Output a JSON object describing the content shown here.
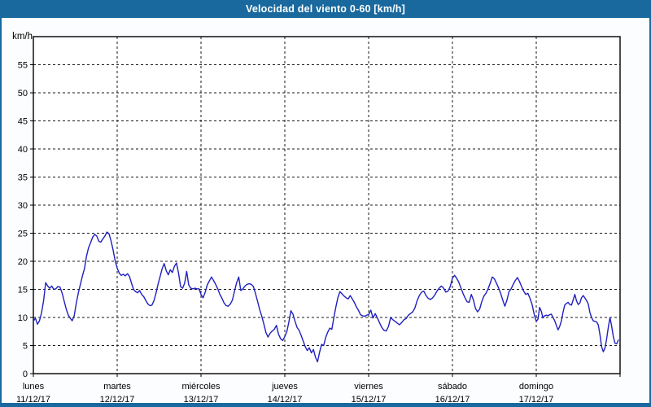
{
  "title": "Velocidad del viento 0-60 [km/h]",
  "colors": {
    "titlebar": "#19699e",
    "frame": "#19699e",
    "canvas_bg": "#fbfdfe",
    "plot_bg": "#ffffff",
    "grid": "#1a1a1a",
    "line": "#2020c0"
  },
  "y_axis": {
    "unit": "km/h",
    "min_label": "0",
    "max_label": "55"
  },
  "chart_data": {
    "type": "line",
    "title": "Velocidad del viento 0-60 [km/h]",
    "xlabel": "",
    "ylabel": "km/h",
    "ylim": [
      0,
      60
    ],
    "y_tick_step": 5,
    "grid": "dashed",
    "legend": "none",
    "line_color": "#2020c0",
    "series_name": "wind-speed",
    "days": [
      {
        "name": "lunes",
        "date": "11/12/17",
        "values": [
          9.3,
          9.9,
          8.8,
          9.4,
          10.8,
          13.0,
          16.2,
          15.6,
          15.2,
          15.6,
          15.0,
          15.1,
          15.5,
          15.4,
          14.4,
          13.0,
          11.6,
          10.5,
          9.9,
          9.4,
          10.3,
          12.6,
          14.4,
          15.9,
          17.4,
          18.7,
          20.9,
          22.4,
          23.3,
          24.3,
          24.8,
          24.5,
          23.6,
          23.4,
          24.0,
          24.5,
          25.2,
          24.9,
          23.6,
          22.0,
          20.1
        ]
      },
      {
        "name": "martes",
        "date": "12/12/17",
        "values": [
          18.8,
          17.9,
          17.5,
          17.7,
          17.4,
          17.8,
          17.3,
          16.1,
          15.0,
          14.6,
          14.4,
          14.8,
          14.1,
          13.7,
          13.0,
          12.4,
          12.1,
          12.2,
          13.0,
          14.3,
          15.9,
          17.3,
          18.7,
          19.6,
          18.3,
          17.6,
          18.5,
          18.0,
          19.1,
          19.7,
          17.9,
          15.5,
          15.2,
          16.1,
          18.2,
          15.8,
          15.2,
          15.1,
          15.2,
          15.1,
          15.1
        ]
      },
      {
        "name": "miércoles",
        "date": "13/12/17",
        "values": [
          14.1,
          13.5,
          14.5,
          15.8,
          16.5,
          17.2,
          16.6,
          15.9,
          15.1,
          14.1,
          13.4,
          12.6,
          12.1,
          12.0,
          12.4,
          13.1,
          14.7,
          16.2,
          17.2,
          14.8,
          15.1,
          15.6,
          15.9,
          16.0,
          15.9,
          15.5,
          14.3,
          12.9,
          11.4,
          10.2,
          8.8,
          7.3,
          6.5,
          7.2,
          7.6,
          7.9,
          8.6,
          7.0,
          6.2,
          5.9
        ]
      },
      {
        "name": "jueves",
        "date": "14/12/17",
        "values": [
          6.6,
          7.5,
          9.2,
          11.2,
          10.6,
          9.3,
          8.2,
          7.7,
          6.8,
          5.8,
          4.8,
          4.1,
          4.6,
          3.7,
          4.3,
          2.9,
          2.1,
          3.8,
          5.2,
          5.0,
          6.4,
          7.4,
          8.1,
          7.9,
          10.0,
          11.9,
          13.6,
          14.6,
          14.2,
          13.8,
          13.5,
          13.3,
          13.9,
          13.3,
          12.7,
          11.9,
          11.3,
          10.5,
          10.3,
          10.2,
          10.4
        ]
      },
      {
        "name": "viernes",
        "date": "15/12/17",
        "values": [
          10.5,
          11.3,
          9.9,
          10.7,
          9.9,
          9.0,
          8.2,
          7.7,
          7.6,
          8.4,
          10.0,
          9.6,
          9.3,
          9.0,
          8.7,
          9.1,
          9.6,
          9.8,
          10.4,
          10.7,
          11.0,
          11.7,
          13.0,
          13.9,
          14.5,
          14.7,
          13.9,
          13.4,
          13.2,
          13.5,
          14.0,
          14.7,
          15.2,
          15.6,
          15.2,
          14.5,
          14.7,
          15.5
        ]
      },
      {
        "name": "sábado",
        "date": "16/12/17",
        "values": [
          17.0,
          17.5,
          17.0,
          16.3,
          15.3,
          14.3,
          13.5,
          12.8,
          12.7,
          14.1,
          13.1,
          11.6,
          11.0,
          11.5,
          12.8,
          13.8,
          14.3,
          15.1,
          16.1,
          17.2,
          16.9,
          16.1,
          15.3,
          14.3,
          13.1,
          12.0,
          13.1,
          14.6,
          15.1,
          15.9,
          16.6,
          17.1,
          16.4,
          15.5,
          14.7,
          14.1,
          14.3,
          13.4,
          12.3,
          10.6
        ]
      },
      {
        "name": "domingo",
        "date": "17/12/17",
        "values": [
          9.3,
          9.7,
          11.8,
          11.1,
          9.9,
          10.3,
          10.4,
          10.3,
          10.5,
          10.6,
          10.0,
          9.4,
          8.6,
          7.8,
          8.4,
          9.4,
          11.0,
          12.2,
          12.5,
          12.7,
          12.3,
          12.2,
          13.1,
          14.1,
          13.0,
          12.3,
          12.6,
          13.5,
          13.9,
          13.5,
          13.0,
          12.4,
          10.9,
          10.0,
          9.4,
          9.3,
          9.2,
          8.7,
          6.9,
          4.8,
          3.9,
          4.6,
          6.2,
          8.3,
          10.0,
          8.4,
          6.5,
          5.4,
          5.3,
          6.0
        ]
      }
    ]
  }
}
